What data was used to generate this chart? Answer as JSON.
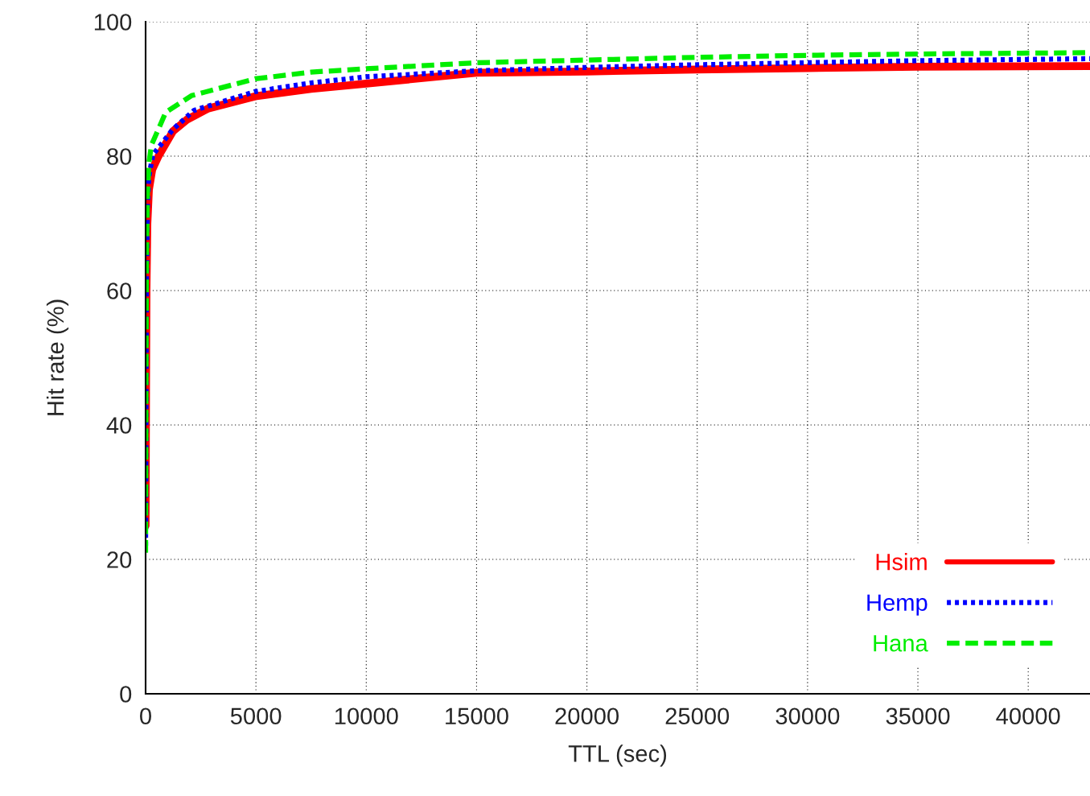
{
  "chart_data": {
    "type": "line",
    "xlabel": "TTL (sec)",
    "ylabel": "Hit rate (%)",
    "xlim": [
      0,
      42800
    ],
    "ylim": [
      0,
      100
    ],
    "xticks": [
      0,
      5000,
      10000,
      15000,
      20000,
      25000,
      30000,
      35000,
      40000
    ],
    "yticks": [
      0,
      20,
      40,
      60,
      80,
      100
    ],
    "grid": true,
    "legend": "bottom right",
    "marker": "none",
    "series": [
      {
        "name": "Hsim",
        "color": "#ff0000",
        "line_style": "solid",
        "x": [
          0,
          20,
          40,
          80,
          150,
          300,
          583,
          1240,
          1860,
          2845,
          4960,
          7500,
          10000,
          15000,
          20000,
          25000,
          30000,
          35000,
          42800
        ],
        "values": [
          25,
          45,
          60,
          70,
          75,
          78,
          80,
          83.7,
          85.4,
          87.1,
          88.9,
          90,
          90.8,
          92.4,
          92.6,
          92.9,
          93.1,
          93.3,
          93.4
        ]
      },
      {
        "name": "Hemp",
        "color": "#0000ff",
        "line_style": "dotted",
        "x": [
          0,
          20,
          40,
          80,
          150,
          330,
          1240,
          2190,
          4960,
          7500,
          10000,
          15000,
          20000,
          25000,
          30000,
          35000,
          42800
        ],
        "values": [
          22,
          45,
          62,
          72,
          77,
          80.2,
          84,
          86.8,
          89.6,
          90.9,
          91.8,
          92.7,
          93.2,
          93.6,
          93.9,
          94.2,
          94.5
        ]
      },
      {
        "name": "Hana",
        "color": "#00ee00",
        "line_style": "dashed",
        "x": [
          0,
          20,
          40,
          80,
          150,
          260,
          910,
          2080,
          4960,
          7500,
          10000,
          15000,
          20000,
          25000,
          30000,
          35000,
          42800
        ],
        "values": [
          21,
          48,
          65,
          74,
          79,
          81.6,
          86.5,
          89,
          91.5,
          92.5,
          93,
          93.9,
          94.3,
          94.7,
          95,
          95.2,
          95.4
        ]
      }
    ]
  }
}
